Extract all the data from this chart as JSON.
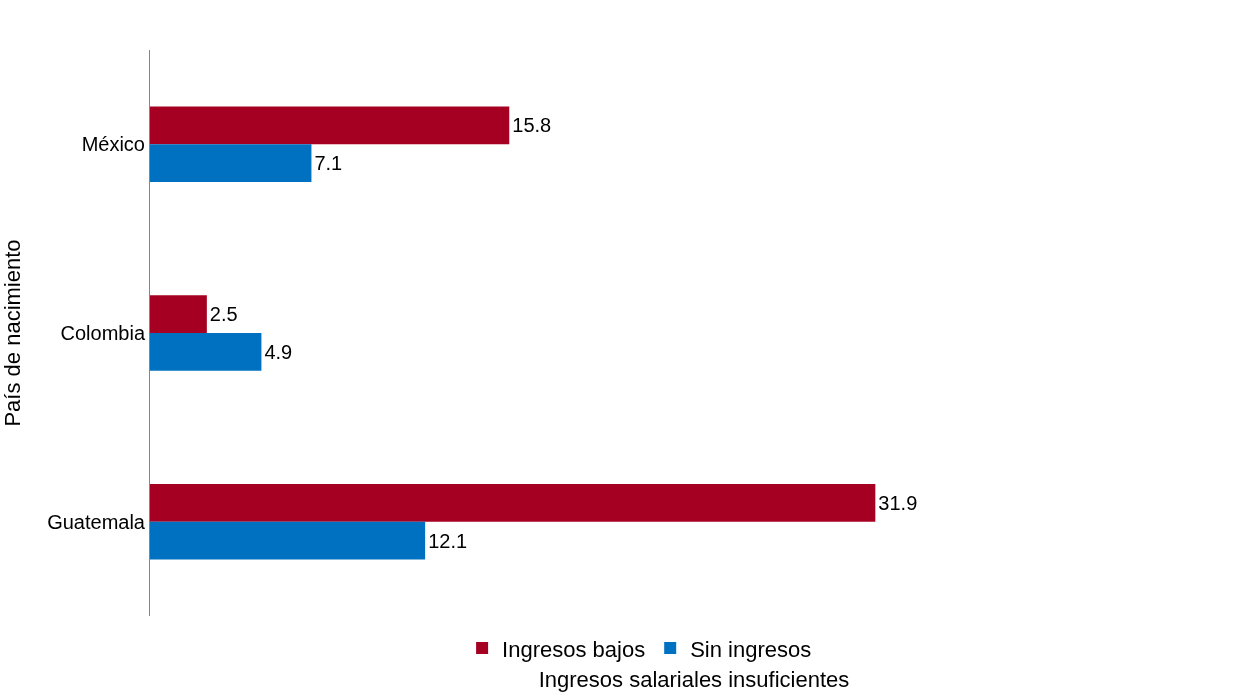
{
  "chart_data": {
    "type": "bar",
    "orientation": "horizontal",
    "xlabel": "Ingresos salariales insuficientes",
    "ylabel": "País de nacimiento",
    "categories": [
      "México",
      "Colombia",
      "Guatemala"
    ],
    "series": [
      {
        "name": "Ingresos bajos",
        "color": "#a50021",
        "values": [
          15.8,
          2.5,
          31.9
        ]
      },
      {
        "name": "Sin ingresos",
        "color": "#0070c0",
        "values": [
          7.1,
          4.9,
          12.1
        ]
      }
    ],
    "data_labels": true,
    "legend": "bottom",
    "tick_labels": "y"
  }
}
